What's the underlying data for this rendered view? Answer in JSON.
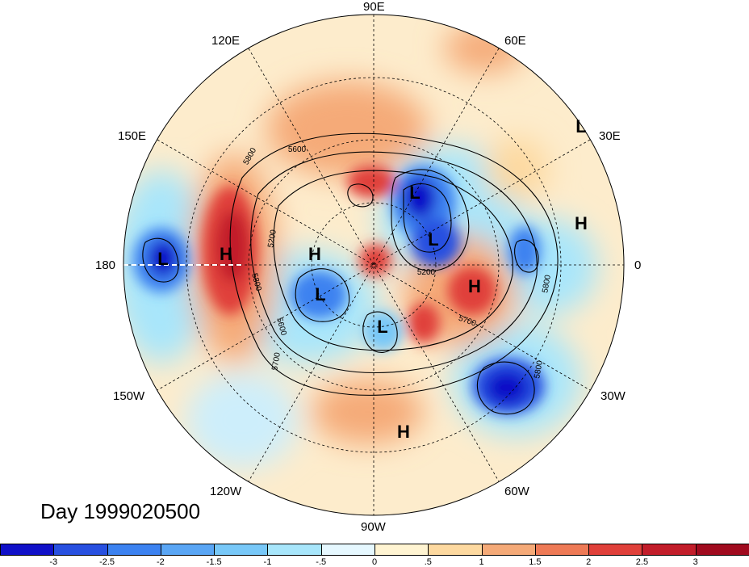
{
  "title": "Day 1999020500",
  "longitude_labels": [
    {
      "text": "90E",
      "lon": 90
    },
    {
      "text": "60E",
      "lon": 60
    },
    {
      "text": "30E",
      "lon": 30
    },
    {
      "text": "0",
      "lon": 0
    },
    {
      "text": "30W",
      "lon": -30
    },
    {
      "text": "60W",
      "lon": -60
    },
    {
      "text": "90W",
      "lon": -90
    },
    {
      "text": "120W",
      "lon": -120
    },
    {
      "text": "150W",
      "lon": -150
    },
    {
      "text": "180",
      "lon": 180
    },
    {
      "text": "150E",
      "lon": 150
    },
    {
      "text": "120E",
      "lon": 120
    }
  ],
  "pressure_centers": [
    {
      "label": "L",
      "type": "low"
    },
    {
      "label": "L",
      "type": "low"
    },
    {
      "label": "L",
      "type": "low"
    },
    {
      "label": "L",
      "type": "low"
    },
    {
      "label": "L",
      "type": "low"
    },
    {
      "label": "H",
      "type": "high"
    },
    {
      "label": "H",
      "type": "high"
    },
    {
      "label": "H",
      "type": "high"
    },
    {
      "label": "H",
      "type": "high"
    },
    {
      "label": "H",
      "type": "high"
    },
    {
      "label": "L",
      "type": "low"
    }
  ],
  "contour_labels": [
    "5800",
    "5600",
    "5200",
    "5800",
    "5600",
    "5700",
    "5200",
    "5700",
    "5800",
    "5800"
  ],
  "colorbar": {
    "ticks": [
      "-3",
      "-2.5",
      "-2",
      "-1.5",
      "-1",
      "-.5",
      "0",
      ".5",
      "1",
      "1.5",
      "2",
      "2.5",
      "3"
    ],
    "colors": [
      "#1010c8",
      "#2850e0",
      "#3c82f0",
      "#5aa6f5",
      "#78c8f8",
      "#a8e6fb",
      "#e6f8ff",
      "#fff4d2",
      "#fdd9a0",
      "#f5aa78",
      "#ee7a56",
      "#e0403a",
      "#c21d2a",
      "#a00a1e"
    ]
  },
  "colors": {
    "positive": "#e0403a",
    "negative": "#2850e0",
    "background": "#ffffff"
  }
}
